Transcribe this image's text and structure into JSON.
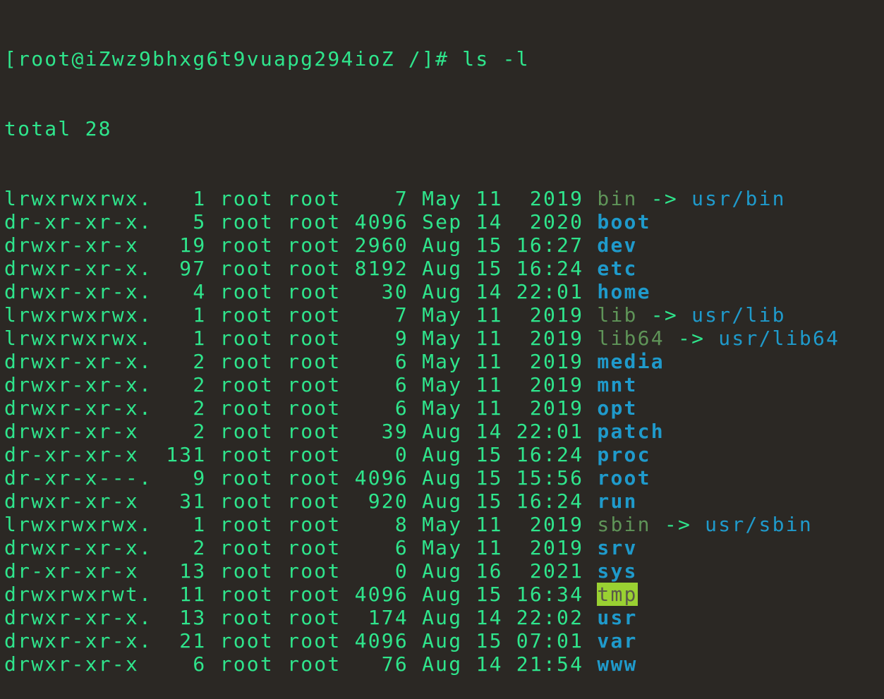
{
  "terminal": {
    "prompt": "[root@iZwz9bhxg6t9vuapg294ioZ /]# ls -l",
    "total": "total 28",
    "colors": {
      "background": "#2b2824",
      "text": "#2fe58c",
      "directory": "#1f9acb",
      "symlink": "#5f9458",
      "sticky_bg": "#9ad132"
    },
    "entries": [
      {
        "perms": "lrwxrwxrwx.",
        "links": "1",
        "owner": "root",
        "group": "root",
        "size": "7",
        "month": "May",
        "day": "11",
        "time": "2019",
        "name": "bin",
        "type": "symlink",
        "arrow": "->",
        "target": "usr/bin"
      },
      {
        "perms": "dr-xr-xr-x.",
        "links": "5",
        "owner": "root",
        "group": "root",
        "size": "4096",
        "month": "Sep",
        "day": "14",
        "time": "2020",
        "name": "boot",
        "type": "dir"
      },
      {
        "perms": "drwxr-xr-x",
        "links": "19",
        "owner": "root",
        "group": "root",
        "size": "2960",
        "month": "Aug",
        "day": "15",
        "time": "16:27",
        "name": "dev",
        "type": "dir"
      },
      {
        "perms": "drwxr-xr-x.",
        "links": "97",
        "owner": "root",
        "group": "root",
        "size": "8192",
        "month": "Aug",
        "day": "15",
        "time": "16:24",
        "name": "etc",
        "type": "dir"
      },
      {
        "perms": "drwxr-xr-x.",
        "links": "4",
        "owner": "root",
        "group": "root",
        "size": "30",
        "month": "Aug",
        "day": "14",
        "time": "22:01",
        "name": "home",
        "type": "dir"
      },
      {
        "perms": "lrwxrwxrwx.",
        "links": "1",
        "owner": "root",
        "group": "root",
        "size": "7",
        "month": "May",
        "day": "11",
        "time": "2019",
        "name": "lib",
        "type": "symlink",
        "arrow": "->",
        "target": "usr/lib"
      },
      {
        "perms": "lrwxrwxrwx.",
        "links": "1",
        "owner": "root",
        "group": "root",
        "size": "9",
        "month": "May",
        "day": "11",
        "time": "2019",
        "name": "lib64",
        "type": "symlink",
        "arrow": "->",
        "target": "usr/lib64"
      },
      {
        "perms": "drwxr-xr-x.",
        "links": "2",
        "owner": "root",
        "group": "root",
        "size": "6",
        "month": "May",
        "day": "11",
        "time": "2019",
        "name": "media",
        "type": "dir"
      },
      {
        "perms": "drwxr-xr-x.",
        "links": "2",
        "owner": "root",
        "group": "root",
        "size": "6",
        "month": "May",
        "day": "11",
        "time": "2019",
        "name": "mnt",
        "type": "dir"
      },
      {
        "perms": "drwxr-xr-x.",
        "links": "2",
        "owner": "root",
        "group": "root",
        "size": "6",
        "month": "May",
        "day": "11",
        "time": "2019",
        "name": "opt",
        "type": "dir"
      },
      {
        "perms": "drwxr-xr-x",
        "links": "2",
        "owner": "root",
        "group": "root",
        "size": "39",
        "month": "Aug",
        "day": "14",
        "time": "22:01",
        "name": "patch",
        "type": "dir"
      },
      {
        "perms": "dr-xr-xr-x",
        "links": "131",
        "owner": "root",
        "group": "root",
        "size": "0",
        "month": "Aug",
        "day": "15",
        "time": "16:24",
        "name": "proc",
        "type": "dir"
      },
      {
        "perms": "dr-xr-x---.",
        "links": "9",
        "owner": "root",
        "group": "root",
        "size": "4096",
        "month": "Aug",
        "day": "15",
        "time": "15:56",
        "name": "root",
        "type": "dir"
      },
      {
        "perms": "drwxr-xr-x",
        "links": "31",
        "owner": "root",
        "group": "root",
        "size": "920",
        "month": "Aug",
        "day": "15",
        "time": "16:24",
        "name": "run",
        "type": "dir"
      },
      {
        "perms": "lrwxrwxrwx.",
        "links": "1",
        "owner": "root",
        "group": "root",
        "size": "8",
        "month": "May",
        "day": "11",
        "time": "2019",
        "name": "sbin",
        "type": "symlink",
        "arrow": "->",
        "target": "usr/sbin"
      },
      {
        "perms": "drwxr-xr-x.",
        "links": "2",
        "owner": "root",
        "group": "root",
        "size": "6",
        "month": "May",
        "day": "11",
        "time": "2019",
        "name": "srv",
        "type": "dir"
      },
      {
        "perms": "dr-xr-xr-x",
        "links": "13",
        "owner": "root",
        "group": "root",
        "size": "0",
        "month": "Aug",
        "day": "16",
        "time": "2021",
        "name": "sys",
        "type": "dir"
      },
      {
        "perms": "drwxrwxrwt.",
        "links": "11",
        "owner": "root",
        "group": "root",
        "size": "4096",
        "month": "Aug",
        "day": "15",
        "time": "16:34",
        "name": "tmp",
        "type": "sticky"
      },
      {
        "perms": "drwxr-xr-x.",
        "links": "13",
        "owner": "root",
        "group": "root",
        "size": "174",
        "month": "Aug",
        "day": "14",
        "time": "22:02",
        "name": "usr",
        "type": "dir"
      },
      {
        "perms": "drwxr-xr-x.",
        "links": "21",
        "owner": "root",
        "group": "root",
        "size": "4096",
        "month": "Aug",
        "day": "15",
        "time": "07:01",
        "name": "var",
        "type": "dir"
      },
      {
        "perms": "drwxr-xr-x",
        "links": "6",
        "owner": "root",
        "group": "root",
        "size": "76",
        "month": "Aug",
        "day": "14",
        "time": "21:54",
        "name": "www",
        "type": "dir"
      }
    ]
  }
}
